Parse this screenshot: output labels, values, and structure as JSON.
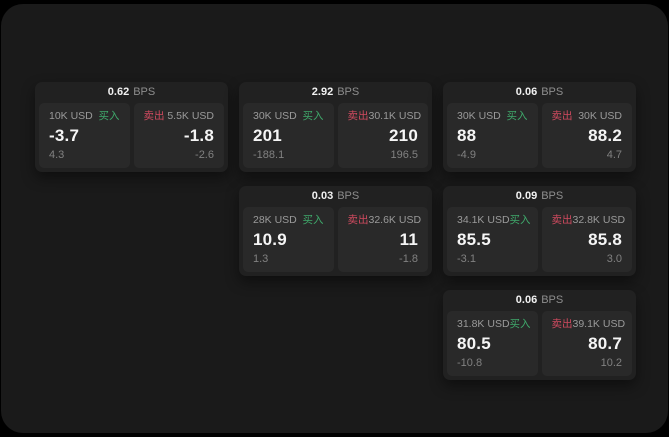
{
  "labels": {
    "bps_unit": "BPS",
    "buy": "买入",
    "sell": "卖出"
  },
  "colors": {
    "buy_green": "#3fa96b",
    "sell_red": "#d04a5f",
    "panel_bg": "#1a1a1a",
    "card_bg": "#212121",
    "tile_bg": "#292929"
  },
  "cards": [
    {
      "col": 1,
      "row": 1,
      "bps": "0.62",
      "buy": {
        "size": "10K USD",
        "value": "-3.7",
        "sub": "4.3"
      },
      "sell": {
        "size": "5.5K USD",
        "value": "-1.8",
        "sub": "-2.6"
      }
    },
    {
      "col": 2,
      "row": 1,
      "bps": "2.92",
      "buy": {
        "size": "30K USD",
        "value": "201",
        "sub": "-188.1"
      },
      "sell": {
        "size": "30.1K USD",
        "value": "210",
        "sub": "196.5"
      }
    },
    {
      "col": 3,
      "row": 1,
      "bps": "0.06",
      "buy": {
        "size": "30K USD",
        "value": "88",
        "sub": "-4.9"
      },
      "sell": {
        "size": "30K USD",
        "value": "88.2",
        "sub": "4.7"
      }
    },
    {
      "col": 2,
      "row": 2,
      "bps": "0.03",
      "buy": {
        "size": "28K USD",
        "value": "10.9",
        "sub": "1.3"
      },
      "sell": {
        "size": "32.6K USD",
        "value": "11",
        "sub": "-1.8"
      }
    },
    {
      "col": 3,
      "row": 2,
      "bps": "0.09",
      "buy": {
        "size": "34.1K USD",
        "value": "85.5",
        "sub": "-3.1"
      },
      "sell": {
        "size": "32.8K USD",
        "value": "85.8",
        "sub": "3.0"
      }
    },
    {
      "col": 3,
      "row": 3,
      "bps": "0.06",
      "buy": {
        "size": "31.8K USD",
        "value": "80.5",
        "sub": "-10.8"
      },
      "sell": {
        "size": "39.1K USD",
        "value": "80.7",
        "sub": "10.2"
      }
    }
  ]
}
